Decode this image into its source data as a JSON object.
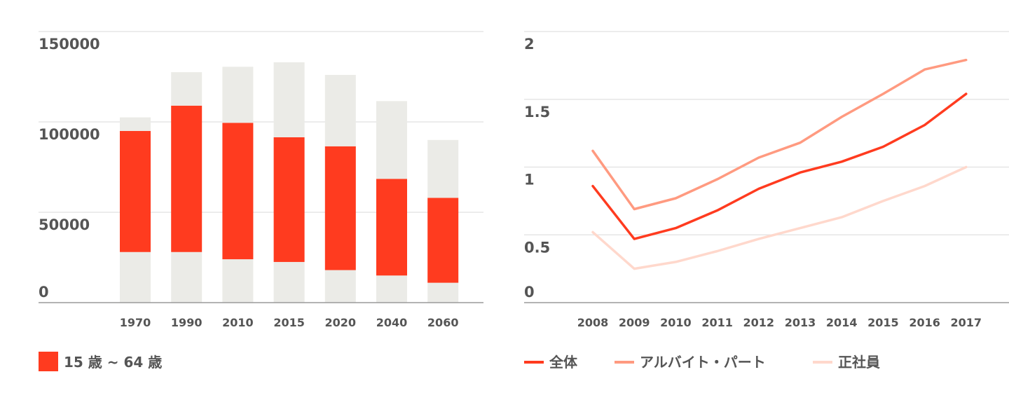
{
  "chart_data": [
    {
      "type": "bar",
      "stacked": true,
      "categories": [
        "1970",
        "1990",
        "2010",
        "2015",
        "2020",
        "2040",
        "2060"
      ],
      "ylim": [
        0,
        150000
      ],
      "yticks": [
        "0",
        "50000",
        "100000",
        "150000"
      ],
      "grid": true,
      "legend_position": "bottom-left",
      "series": [
        {
          "name": "",
          "color": "#ebebe7",
          "values": [
            28000,
            28000,
            24000,
            22500,
            18000,
            15000,
            11000
          ]
        },
        {
          "name": "15 歳 ~ 64 歳",
          "color": "#ff3b1f",
          "values": [
            67000,
            81000,
            75500,
            69000,
            68500,
            53500,
            47000
          ]
        },
        {
          "name": "",
          "color": "#ebebe7",
          "values": [
            7500,
            18500,
            31000,
            41500,
            39500,
            43000,
            32000
          ]
        }
      ]
    },
    {
      "type": "line",
      "x": [
        "2008",
        "2009",
        "2010",
        "2011",
        "2012",
        "2013",
        "2014",
        "2015",
        "2016",
        "2017"
      ],
      "ylim": [
        0,
        2
      ],
      "yticks": [
        "0",
        "0.5",
        "1",
        "1.5",
        "2"
      ],
      "grid": true,
      "legend_position": "bottom-left",
      "series": [
        {
          "name": "全体",
          "color": "#ff3b1f",
          "values": [
            0.86,
            0.47,
            0.55,
            0.68,
            0.84,
            0.96,
            1.04,
            1.15,
            1.31,
            1.54
          ]
        },
        {
          "name": "アルバイト・パート",
          "color": "#ff9a80",
          "values": [
            1.12,
            0.69,
            0.77,
            0.91,
            1.07,
            1.18,
            1.37,
            1.54,
            1.72,
            1.79
          ]
        },
        {
          "name": "正社員",
          "color": "#ffd8cc",
          "values": [
            0.52,
            0.25,
            0.3,
            0.38,
            0.47,
            0.55,
            0.63,
            0.75,
            0.86,
            1.0
          ]
        }
      ]
    }
  ]
}
